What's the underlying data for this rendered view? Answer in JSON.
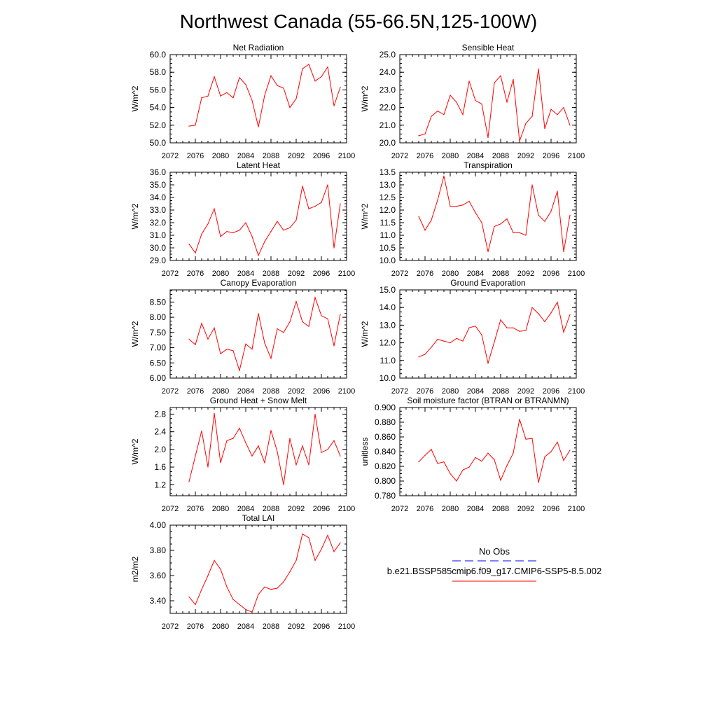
{
  "figure": {
    "title": "Northwest Canada (55-66.5N,125-100W)",
    "legend": {
      "entries": [
        {
          "label": "No Obs",
          "color": "#0000ff",
          "dash": true
        },
        {
          "label": "b.e21.BSSP585cmip6.f09_g17.CMIP6-SSP5-8.5.002",
          "color": "#ff0000",
          "dash": false
        }
      ]
    }
  },
  "chart_data": [
    {
      "id": "net-radiation",
      "type": "line",
      "title": "Net Radiation",
      "ylabel": "W/m^2",
      "xlim": [
        2072,
        2100
      ],
      "ylim": [
        50.0,
        60.0
      ],
      "xticks": [
        "2072",
        "2076",
        "2080",
        "2084",
        "2088",
        "2092",
        "2096",
        "2100"
      ],
      "yticks": [
        "50.0",
        "52.0",
        "54.0",
        "56.0",
        "58.0",
        "60.0"
      ],
      "color": "#ff0000",
      "x": [
        2075,
        2076,
        2077,
        2078,
        2079,
        2080,
        2081,
        2082,
        2083,
        2084,
        2085,
        2086,
        2087,
        2088,
        2089,
        2090,
        2091,
        2092,
        2093,
        2094,
        2095,
        2096,
        2097,
        2098,
        2099
      ],
      "y": [
        51.9,
        52.0,
        55.1,
        55.3,
        57.5,
        55.3,
        55.7,
        55.1,
        57.4,
        56.6,
        54.8,
        51.8,
        55.4,
        57.6,
        56.5,
        56.2,
        54.0,
        55.0,
        58.4,
        58.9,
        57.0,
        57.5,
        58.6,
        54.2,
        56.3
      ]
    },
    {
      "id": "sensible-heat",
      "type": "line",
      "title": "Sensible Heat",
      "ylabel": "W/m^2",
      "xlim": [
        2072,
        2100
      ],
      "ylim": [
        20.0,
        25.0
      ],
      "xticks": [
        "2072",
        "2076",
        "2080",
        "2084",
        "2088",
        "2092",
        "2096",
        "2100"
      ],
      "yticks": [
        "20.0",
        "21.0",
        "22.0",
        "23.0",
        "24.0",
        "25.0"
      ],
      "color": "#ff0000",
      "x": [
        2075,
        2076,
        2077,
        2078,
        2079,
        2080,
        2081,
        2082,
        2083,
        2084,
        2085,
        2086,
        2087,
        2088,
        2089,
        2090,
        2091,
        2092,
        2093,
        2094,
        2095,
        2096,
        2097,
        2098,
        2099
      ],
      "y": [
        20.4,
        20.5,
        21.5,
        21.8,
        21.6,
        22.7,
        22.3,
        21.6,
        23.5,
        22.4,
        22.2,
        20.3,
        23.4,
        23.8,
        22.3,
        23.6,
        20.1,
        21.1,
        21.5,
        24.2,
        20.8,
        21.9,
        21.6,
        22.0,
        21.0
      ]
    },
    {
      "id": "latent-heat",
      "type": "line",
      "title": "Latent Heat",
      "ylabel": "W/m^2",
      "xlim": [
        2072,
        2100
      ],
      "ylim": [
        29.0,
        36.0
      ],
      "xticks": [
        "2072",
        "2076",
        "2080",
        "2084",
        "2088",
        "2092",
        "2096",
        "2100"
      ],
      "yticks": [
        "29.0",
        "30.0",
        "31.0",
        "32.0",
        "33.0",
        "34.0",
        "35.0",
        "36.0"
      ],
      "color": "#ff0000",
      "x": [
        2075,
        2076,
        2077,
        2078,
        2079,
        2080,
        2081,
        2082,
        2083,
        2084,
        2085,
        2086,
        2087,
        2088,
        2089,
        2090,
        2091,
        2092,
        2093,
        2094,
        2095,
        2096,
        2097,
        2098,
        2099
      ],
      "y": [
        30.3,
        29.6,
        31.1,
        31.9,
        33.1,
        30.9,
        31.3,
        31.2,
        31.4,
        32.0,
        30.9,
        29.4,
        30.5,
        31.3,
        32.1,
        31.4,
        31.6,
        32.2,
        34.9,
        33.1,
        33.3,
        33.6,
        35.0,
        30.0,
        33.5
      ]
    },
    {
      "id": "transpiration",
      "type": "line",
      "title": "Transpiration",
      "ylabel": "W/m^2",
      "xlim": [
        2072,
        2100
      ],
      "ylim": [
        10.0,
        13.5
      ],
      "xticks": [
        "2072",
        "2076",
        "2080",
        "2084",
        "2088",
        "2092",
        "2096",
        "2100"
      ],
      "yticks": [
        "10.0",
        "10.5",
        "11.0",
        "11.5",
        "12.0",
        "12.5",
        "13.0",
        "13.5"
      ],
      "color": "#ff0000",
      "x": [
        2075,
        2076,
        2077,
        2078,
        2079,
        2080,
        2081,
        2082,
        2083,
        2084,
        2085,
        2086,
        2087,
        2088,
        2089,
        2090,
        2091,
        2092,
        2093,
        2094,
        2095,
        2096,
        2097,
        2098,
        2099
      ],
      "y": [
        11.75,
        11.2,
        11.6,
        12.4,
        13.35,
        12.15,
        12.15,
        12.2,
        12.35,
        11.9,
        11.5,
        10.35,
        11.35,
        11.45,
        11.65,
        11.1,
        11.1,
        11.0,
        13.0,
        11.8,
        11.55,
        11.95,
        12.75,
        10.35,
        11.8
      ]
    },
    {
      "id": "canopy-evaporation",
      "type": "line",
      "title": "Canopy Evaporation",
      "ylabel": "W/m^2",
      "xlim": [
        2072,
        2100
      ],
      "ylim": [
        6.0,
        8.9
      ],
      "xticks": [
        "2072",
        "2076",
        "2080",
        "2084",
        "2088",
        "2092",
        "2096",
        "2100"
      ],
      "yticks": [
        "6.00",
        "6.50",
        "7.00",
        "7.50",
        "8.00",
        "8.50"
      ],
      "color": "#ff0000",
      "x": [
        2075,
        2076,
        2077,
        2078,
        2079,
        2080,
        2081,
        2082,
        2083,
        2084,
        2085,
        2086,
        2087,
        2088,
        2089,
        2090,
        2091,
        2092,
        2093,
        2094,
        2095,
        2096,
        2097,
        2098,
        2099
      ],
      "y": [
        7.28,
        7.1,
        7.8,
        7.28,
        7.65,
        6.8,
        6.95,
        6.9,
        6.25,
        7.12,
        6.95,
        8.12,
        7.15,
        6.65,
        7.62,
        7.5,
        7.85,
        8.52,
        7.85,
        7.7,
        8.65,
        8.05,
        7.95,
        7.06,
        8.1
      ]
    },
    {
      "id": "ground-evaporation",
      "type": "line",
      "title": "Ground Evaporation",
      "ylabel": "W/m^2",
      "xlim": [
        2072,
        2100
      ],
      "ylim": [
        10.0,
        15.0
      ],
      "xticks": [
        "2072",
        "2076",
        "2080",
        "2084",
        "2088",
        "2092",
        "2096",
        "2100"
      ],
      "yticks": [
        "10.0",
        "11.0",
        "12.0",
        "13.0",
        "14.0",
        "15.0"
      ],
      "color": "#ff0000",
      "x": [
        2075,
        2076,
        2077,
        2078,
        2079,
        2080,
        2081,
        2082,
        2083,
        2084,
        2085,
        2086,
        2087,
        2088,
        2089,
        2090,
        2091,
        2092,
        2093,
        2094,
        2095,
        2096,
        2097,
        2098,
        2099
      ],
      "y": [
        11.2,
        11.35,
        11.75,
        12.2,
        12.1,
        12.0,
        12.25,
        12.1,
        12.85,
        12.95,
        12.45,
        10.85,
        12.05,
        13.3,
        12.85,
        12.85,
        12.65,
        12.7,
        14.0,
        13.65,
        13.2,
        13.7,
        14.3,
        12.6,
        13.6
      ]
    },
    {
      "id": "ground-heat-snow-melt",
      "type": "line",
      "title": "Ground Heat + Snow Melt",
      "ylabel": "W/m^2",
      "xlim": [
        2072,
        2100
      ],
      "ylim": [
        0.95,
        2.95
      ],
      "xticks": [
        "2072",
        "2076",
        "2080",
        "2084",
        "2088",
        "2092",
        "2096",
        "2100"
      ],
      "yticks": [
        "1.2",
        "1.6",
        "2.0",
        "2.4",
        "2.8"
      ],
      "color": "#ff0000",
      "x": [
        2075,
        2076,
        2077,
        2078,
        2079,
        2080,
        2081,
        2082,
        2083,
        2084,
        2085,
        2086,
        2087,
        2088,
        2089,
        2090,
        2091,
        2092,
        2093,
        2094,
        2095,
        2096,
        2097,
        2098,
        2099
      ],
      "y": [
        1.27,
        1.85,
        2.42,
        1.6,
        2.82,
        1.7,
        2.2,
        2.25,
        2.48,
        2.15,
        1.85,
        2.08,
        1.7,
        2.43,
        1.95,
        1.2,
        2.25,
        1.65,
        2.08,
        1.65,
        2.8,
        1.93,
        2.0,
        2.2,
        1.85
      ]
    },
    {
      "id": "soil-moisture-factor",
      "type": "line",
      "title": "Soil moisture factor (BTRAN or BTRANMN)",
      "ylabel": "unitless",
      "xlim": [
        2072,
        2100
      ],
      "ylim": [
        0.78,
        0.9
      ],
      "xticks": [
        "2072",
        "2076",
        "2080",
        "2084",
        "2088",
        "2092",
        "2096",
        "2100"
      ],
      "yticks": [
        "0.780",
        "0.800",
        "0.820",
        "0.840",
        "0.860",
        "0.880",
        "0.900"
      ],
      "color": "#ff0000",
      "x": [
        2075,
        2076,
        2077,
        2078,
        2079,
        2080,
        2081,
        2082,
        2083,
        2084,
        2085,
        2086,
        2087,
        2088,
        2089,
        2090,
        2091,
        2092,
        2093,
        2094,
        2095,
        2096,
        2097,
        2098,
        2099
      ],
      "y": [
        0.826,
        0.835,
        0.843,
        0.824,
        0.826,
        0.81,
        0.8,
        0.815,
        0.819,
        0.832,
        0.827,
        0.838,
        0.829,
        0.801,
        0.821,
        0.838,
        0.884,
        0.857,
        0.858,
        0.798,
        0.833,
        0.84,
        0.853,
        0.828,
        0.842
      ]
    },
    {
      "id": "total-lai",
      "type": "line",
      "title": "Total LAI",
      "ylabel": "m2/m2",
      "xlim": [
        2072,
        2100
      ],
      "ylim": [
        3.3,
        4.0
      ],
      "xticks": [
        "2072",
        "2076",
        "2080",
        "2084",
        "2088",
        "2092",
        "2096",
        "2100"
      ],
      "yticks": [
        "3.40",
        "3.60",
        "3.80",
        "4.00"
      ],
      "color": "#ff0000",
      "x": [
        2075,
        2076,
        2077,
        2078,
        2079,
        2080,
        2081,
        2082,
        2083,
        2084,
        2085,
        2086,
        2087,
        2088,
        2089,
        2090,
        2091,
        2092,
        2093,
        2094,
        2095,
        2096,
        2097,
        2098,
        2099
      ],
      "y": [
        3.43,
        3.37,
        3.49,
        3.6,
        3.72,
        3.65,
        3.51,
        3.41,
        3.37,
        3.33,
        3.31,
        3.45,
        3.51,
        3.49,
        3.5,
        3.55,
        3.63,
        3.72,
        3.93,
        3.9,
        3.72,
        3.81,
        3.92,
        3.79,
        3.86
      ]
    }
  ]
}
